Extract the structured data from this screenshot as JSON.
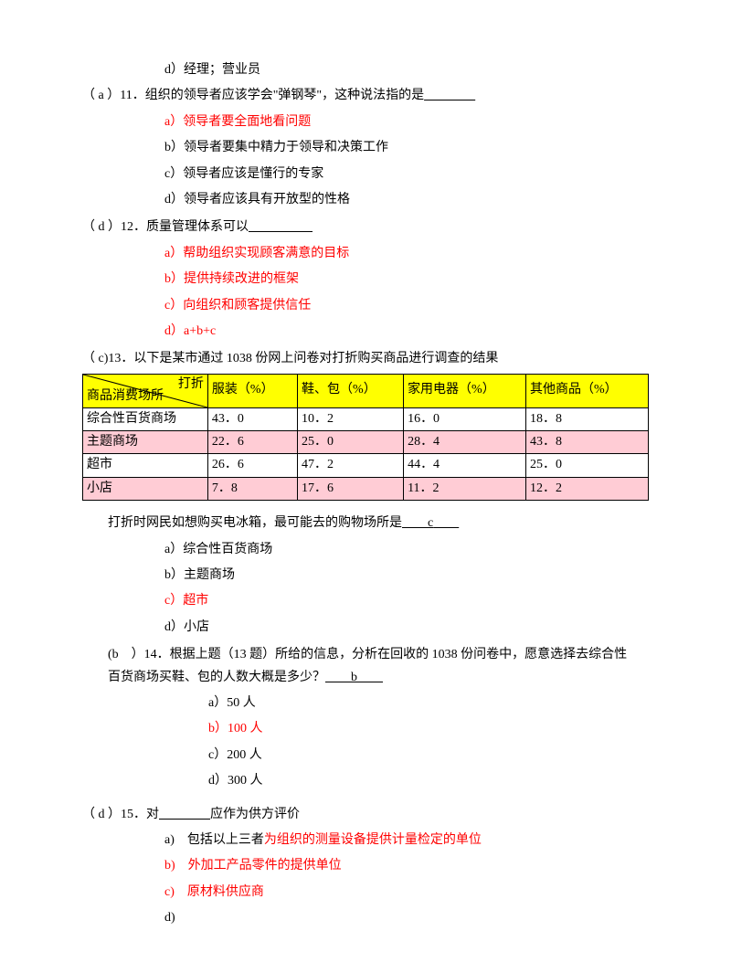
{
  "q10": {
    "opt_d": "d）经理；营业员"
  },
  "q11": {
    "stem_prefix": "（  a  ）11．组织的领导者应该学会\"弹钢琴\"，这种说法指的是",
    "blank": "＿＿＿＿",
    "a": "a）领导者要全面地看问题",
    "b": "b）领导者要集中精力于领导和决策工作",
    "c": "c）领导者应该是懂行的专家",
    "d": "d）领导者应该具有开放型的性格"
  },
  "q12": {
    "stem": "（ d ）12．质量管理体系可以",
    "blank": "＿＿＿＿＿",
    "a": "a）帮助组织实现顾客满意的目标",
    "b": "b）提供持续改进的框架",
    "c": "c）向组织和顾客提供信任",
    "d": "d）a+b+c"
  },
  "q13": {
    "stem": "（ c)13．以下是某市通过 1038 份网上问卷对打折购买商品进行调查的结果",
    "table": {
      "header_diag_top": "打折",
      "header_diag_bot": "商品消费场所",
      "cols": [
        "服装（%）",
        "鞋、包（%）",
        "家用电器（%）",
        "其他商品（%）"
      ],
      "rows": [
        {
          "label": "综合性百货商场",
          "v": [
            "43．0",
            "10．2",
            "16．0",
            "18．8"
          ],
          "cls": "white-row"
        },
        {
          "label": "主题商场",
          "v": [
            "22．6",
            "25．0",
            "28．4",
            "43．8"
          ],
          "cls": "pink-row"
        },
        {
          "label": "超市",
          "v": [
            "26．6",
            "47．2",
            "44．4",
            "25．0"
          ],
          "cls": "white-row"
        },
        {
          "label": "小店",
          "v": [
            "7．8",
            "17．6",
            "11．2",
            "12．2"
          ],
          "cls": "pink-row"
        }
      ]
    },
    "after_prefix": "打折时网民如想购买电冰箱，最可能去的购物场所是",
    "after_blank_l": "　　",
    "after_ans": "c",
    "after_blank_r": "　　",
    "a": "a）综合性百货商场",
    "b": "b）主题商场",
    "c": "c）超市",
    "d": "d）小店"
  },
  "q14": {
    "line1": "(b　）14．根据上题（13 题）所给的信息，分析在回收的 1038 份问卷中，愿意选择去综合性",
    "line2_pre": "百货商场买鞋、包的人数大概是多少？",
    "line2_blank_l": "　　",
    "line2_ans": "b",
    "line2_blank_r": "　　",
    "a": "a）50 人",
    "b": "b）100 人",
    "c": "c）200 人",
    "d": "d）300 人"
  },
  "q15": {
    "stem_pre": "（  d  ）15．对",
    "stem_blank": "＿＿＿＿",
    "stem_post": "应作为供方评价",
    "a_black": "a)　包括以上三者",
    "a_red": "为组织的测量设备提供计量检定的单位",
    "b": "b)　外加工产品零件的提供单位",
    "c": "c)　原材料供应商",
    "d": "d)"
  }
}
